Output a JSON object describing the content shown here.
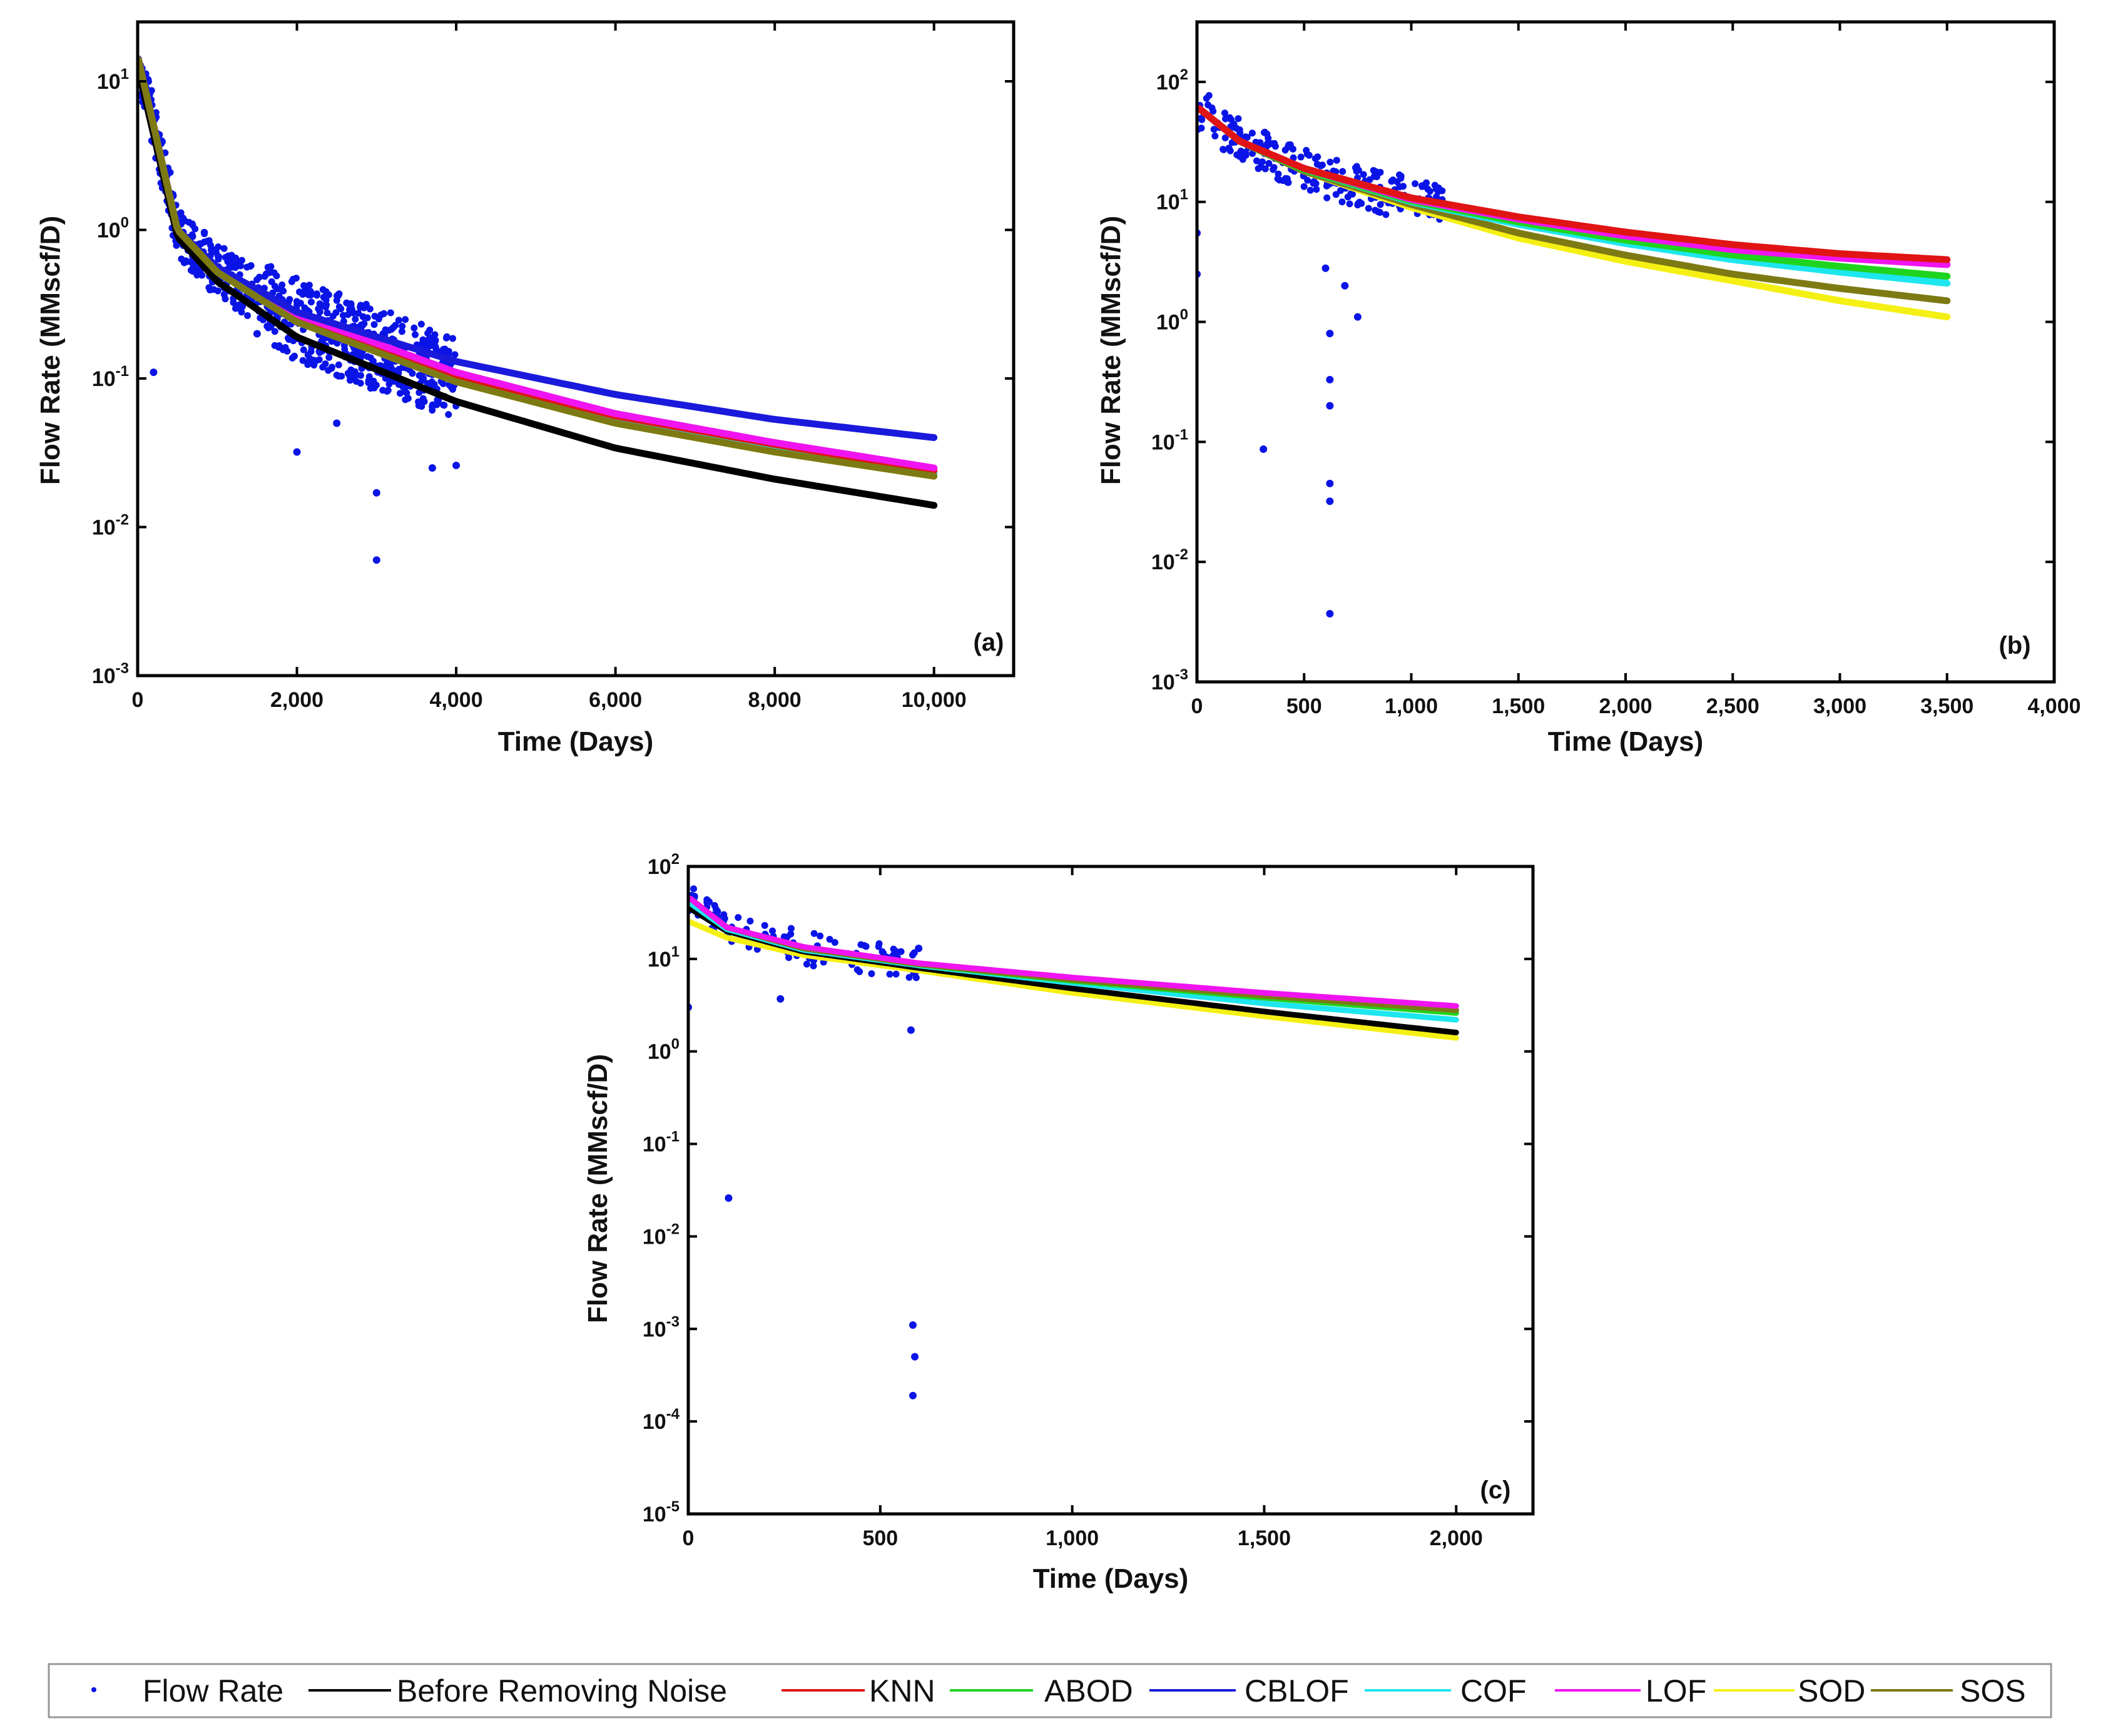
{
  "legend": {
    "items": [
      {
        "name": "Flow Rate",
        "color": "#0a14e6",
        "kind": "marker"
      },
      {
        "name": "Before Removing Noise",
        "color": "#000000",
        "kind": "line"
      },
      {
        "name": "KNN",
        "color": "#e01414",
        "kind": "line"
      },
      {
        "name": "ABOD",
        "color": "#1fd41f",
        "kind": "line"
      },
      {
        "name": "CBLOF",
        "color": "#1a1adc",
        "kind": "line"
      },
      {
        "name": "COF",
        "color": "#1ee6ee",
        "kind": "line"
      },
      {
        "name": "LOF",
        "color": "#f014f0",
        "kind": "line"
      },
      {
        "name": "SOD",
        "color": "#f5f014",
        "kind": "line"
      },
      {
        "name": "SOS",
        "color": "#7d7a14",
        "kind": "line"
      }
    ]
  },
  "chart_data": [
    {
      "id": "a",
      "type": "scatter",
      "panel_label": "(a)",
      "xlabel": "Time (Days)",
      "ylabel": "Flow Rate (MMscf/D)",
      "xlim": [
        0,
        11000
      ],
      "ylim_log10": [
        -3,
        1.4
      ],
      "x_ticks": [
        0,
        2000,
        4000,
        6000,
        8000,
        10000
      ],
      "x_tick_labels": [
        "0",
        "2,000",
        "4,000",
        "6,000",
        "8,000",
        "10,000"
      ],
      "y_ticks": [
        -3,
        -2,
        -1,
        0,
        1
      ],
      "y_tick_labels": [
        {
          "base": "10",
          "exp": "-3"
        },
        {
          "base": "10",
          "exp": "-2"
        },
        {
          "base": "10",
          "exp": "-1"
        },
        {
          "base": "10",
          "exp": "0"
        },
        {
          "base": "10",
          "exp": "1"
        }
      ],
      "scatter_x_range": [
        0,
        4000
      ],
      "outliers": [
        [
          200,
          0.11
        ],
        [
          2000,
          0.032
        ],
        [
          3000,
          0.017
        ],
        [
          3000,
          0.006
        ],
        [
          3700,
          0.025
        ],
        [
          4000,
          0.026
        ],
        [
          1500,
          0.2
        ],
        [
          2500,
          0.05
        ]
      ],
      "series": [
        {
          "name": "Before Removing Noise",
          "x": [
            10,
            500,
            1000,
            2000,
            4000,
            6000,
            8000,
            10000
          ],
          "y": [
            12,
            0.9,
            0.45,
            0.19,
            0.07,
            0.034,
            0.021,
            0.014
          ]
        },
        {
          "name": "SOD",
          "x": [
            10,
            500,
            1000,
            2000,
            4000,
            6000,
            8000,
            10000
          ],
          "y": [
            14,
            1.0,
            0.52,
            0.24,
            0.095,
            0.05,
            0.032,
            0.022
          ]
        },
        {
          "name": "ABOD",
          "x": [
            10,
            500,
            1000,
            2000,
            4000,
            6000,
            8000,
            10000
          ],
          "y": [
            14,
            1.0,
            0.53,
            0.25,
            0.1,
            0.053,
            0.034,
            0.023
          ]
        },
        {
          "name": "COF",
          "x": [
            10,
            500,
            1000,
            2000,
            4000,
            6000,
            8000,
            10000
          ],
          "y": [
            14,
            1.0,
            0.53,
            0.25,
            0.1,
            0.053,
            0.034,
            0.023
          ]
        },
        {
          "name": "KNN",
          "x": [
            10,
            500,
            1000,
            2000,
            4000,
            6000,
            8000,
            10000
          ],
          "y": [
            14,
            1.0,
            0.54,
            0.26,
            0.105,
            0.056,
            0.036,
            0.024
          ]
        },
        {
          "name": "LOF",
          "x": [
            10,
            500,
            1000,
            2000,
            4000,
            6000,
            8000,
            10000
          ],
          "y": [
            14,
            1.0,
            0.55,
            0.27,
            0.11,
            0.058,
            0.037,
            0.025
          ]
        },
        {
          "name": "CBLOF",
          "x": [
            10,
            500,
            1000,
            2000,
            4000,
            6000,
            8000,
            10000
          ],
          "y": [
            14,
            1.0,
            0.56,
            0.28,
            0.13,
            0.078,
            0.053,
            0.04
          ]
        },
        {
          "name": "SOS",
          "x": [
            10,
            500,
            1000,
            2000,
            4000,
            6000,
            8000,
            10000
          ],
          "y": [
            14,
            1.0,
            0.52,
            0.24,
            0.095,
            0.05,
            0.032,
            0.022
          ]
        }
      ]
    },
    {
      "id": "b",
      "type": "scatter",
      "panel_label": "(b)",
      "xlabel": "Time (Days)",
      "ylabel": "Flow Rate (MMscf/D)",
      "xlim": [
        0,
        4000
      ],
      "ylim_log10": [
        -3,
        2.5
      ],
      "x_ticks": [
        0,
        500,
        1000,
        1500,
        2000,
        2500,
        3000,
        3500,
        4000
      ],
      "x_tick_labels": [
        "0",
        "500",
        "1,000",
        "1,500",
        "2,000",
        "2,500",
        "3,000",
        "3,500",
        "4,000"
      ],
      "y_ticks": [
        -3,
        -2,
        -1,
        0,
        1,
        2
      ],
      "y_tick_labels": [
        {
          "base": "10",
          "exp": "-3"
        },
        {
          "base": "10",
          "exp": "-2"
        },
        {
          "base": "10",
          "exp": "-1"
        },
        {
          "base": "10",
          "exp": "0"
        },
        {
          "base": "10",
          "exp": "1"
        },
        {
          "base": "10",
          "exp": "2"
        }
      ],
      "scatter_x_range": [
        0,
        1150
      ],
      "outliers": [
        [
          0,
          5.5
        ],
        [
          0,
          2.5
        ],
        [
          310,
          0.087
        ],
        [
          620,
          0.8
        ],
        [
          620,
          0.33
        ],
        [
          620,
          0.2
        ],
        [
          620,
          0.045
        ],
        [
          620,
          0.032
        ],
        [
          620,
          0.0037
        ],
        [
          750,
          1.1
        ],
        [
          690,
          2.0
        ],
        [
          600,
          2.8
        ]
      ],
      "series": [
        {
          "name": "SOD",
          "x": [
            10,
            200,
            500,
            1000,
            1500,
            2000,
            2500,
            3000,
            3500
          ],
          "y": [
            60,
            32,
            18,
            9,
            5,
            3.2,
            2.2,
            1.5,
            1.1
          ]
        },
        {
          "name": "SOS",
          "x": [
            10,
            200,
            500,
            1000,
            1500,
            2000,
            2500,
            3000,
            3500
          ],
          "y": [
            60,
            32,
            18,
            9.5,
            5.5,
            3.6,
            2.5,
            1.9,
            1.5
          ]
        },
        {
          "name": "COF",
          "x": [
            10,
            200,
            500,
            1000,
            1500,
            2000,
            2500,
            3000,
            3500
          ],
          "y": [
            60,
            32,
            18.5,
            10,
            6.5,
            4.5,
            3.3,
            2.6,
            2.1
          ]
        },
        {
          "name": "ABOD",
          "x": [
            10,
            200,
            500,
            1000,
            1500,
            2000,
            2500,
            3000,
            3500
          ],
          "y": [
            60,
            32,
            18.5,
            10.2,
            6.8,
            4.8,
            3.6,
            2.9,
            2.4
          ]
        },
        {
          "name": "LOF",
          "x": [
            10,
            200,
            500,
            1000,
            1500,
            2000,
            2500,
            3000,
            3500
          ],
          "y": [
            60,
            32,
            19,
            10.5,
            7.2,
            5.2,
            4.0,
            3.4,
            3.0
          ]
        },
        {
          "name": "KNN",
          "x": [
            10,
            200,
            500,
            1000,
            1500,
            2000,
            2500,
            3000,
            3500
          ],
          "y": [
            60,
            32,
            19,
            10.8,
            7.5,
            5.6,
            4.4,
            3.7,
            3.3
          ]
        }
      ]
    },
    {
      "id": "c",
      "type": "scatter",
      "panel_label": "(c)",
      "xlabel": "Time (Days)",
      "ylabel": "Flow Rate (MMscf/D)",
      "xlim": [
        0,
        2200
      ],
      "ylim_log10": [
        -5,
        2
      ],
      "x_ticks": [
        0,
        500,
        1000,
        1500,
        2000
      ],
      "x_tick_labels": [
        "0",
        "500",
        "1,000",
        "1,500",
        "2,000"
      ],
      "y_ticks": [
        -5,
        -4,
        -3,
        -2,
        -1,
        0,
        1,
        2
      ],
      "y_tick_labels": [
        {
          "base": "10",
          "exp": "-5"
        },
        {
          "base": "10",
          "exp": "-4"
        },
        {
          "base": "10",
          "exp": "-3"
        },
        {
          "base": "10",
          "exp": "-2"
        },
        {
          "base": "10",
          "exp": "-1"
        },
        {
          "base": "10",
          "exp": "0"
        },
        {
          "base": "10",
          "exp": "1"
        },
        {
          "base": "10",
          "exp": "2"
        }
      ],
      "scatter_x_range": [
        0,
        600
      ],
      "outliers": [
        [
          0,
          3.0
        ],
        [
          105,
          0.026
        ],
        [
          585,
          0.0011
        ],
        [
          590,
          0.0005
        ],
        [
          585,
          0.00019
        ],
        [
          580,
          1.7
        ],
        [
          240,
          3.7
        ],
        [
          600,
          13
        ]
      ],
      "series": [
        {
          "name": "SOD",
          "x": [
            5,
            100,
            300,
            600,
            1000,
            1500,
            2000
          ],
          "y": [
            25,
            17,
            11,
            7.5,
            4.3,
            2.4,
            1.4
          ]
        },
        {
          "name": "Before Removing Noise",
          "x": [
            5,
            100,
            300,
            600,
            1000,
            1500,
            2000
          ],
          "y": [
            35,
            20,
            12,
            8,
            4.8,
            2.7,
            1.6
          ]
        },
        {
          "name": "COF",
          "x": [
            5,
            100,
            300,
            600,
            1000,
            1500,
            2000
          ],
          "y": [
            40,
            21,
            12.5,
            8.5,
            5.5,
            3.3,
            2.2
          ]
        },
        {
          "name": "ABOD",
          "x": [
            5,
            100,
            300,
            600,
            1000,
            1500,
            2000
          ],
          "y": [
            45,
            22,
            13,
            8.7,
            5.8,
            3.8,
            2.6
          ]
        },
        {
          "name": "KNN",
          "x": [
            5,
            100,
            300,
            600,
            1000,
            1500,
            2000
          ],
          "y": [
            45,
            22,
            13,
            8.8,
            6.0,
            4.0,
            2.8
          ]
        },
        {
          "name": "SOS",
          "x": [
            5,
            100,
            300,
            600,
            1000,
            1500,
            2000
          ],
          "y": [
            45,
            22,
            13,
            8.8,
            6.0,
            4.0,
            2.8
          ]
        },
        {
          "name": "LOF",
          "x": [
            5,
            100,
            300,
            600,
            1000,
            1500,
            2000
          ],
          "y": [
            45,
            22,
            13.5,
            9.0,
            6.3,
            4.3,
            3.1
          ]
        }
      ]
    }
  ]
}
